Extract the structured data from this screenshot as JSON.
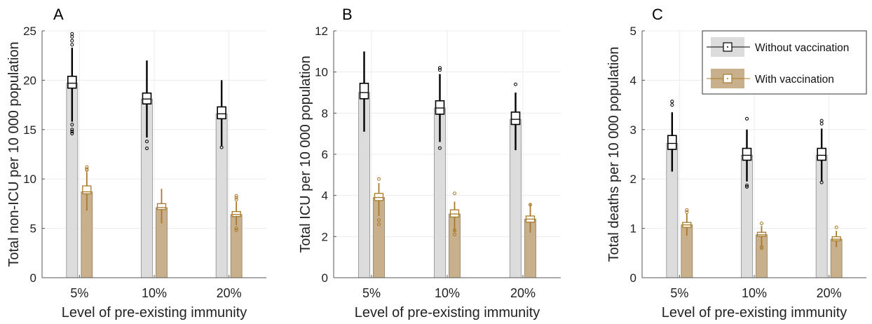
{
  "colors": {
    "without": "#dcdcdc",
    "without_edge": "#8c8c8c",
    "without_box": "#000000",
    "with": "#c8b08c",
    "with_edge": "#8f7d5f",
    "with_box": "#a87a2a",
    "grid": "#ececec",
    "axis": "#555555"
  },
  "chart_data": [
    {
      "type": "bar",
      "panel_label": "A",
      "title": "",
      "xlabel": "Level of pre-existing immunity",
      "ylabel": "Total non-ICU per 10 000 population",
      "categories": [
        "5%",
        "10%",
        "20%"
      ],
      "ylim": [
        0,
        25
      ],
      "yticks": [
        0,
        5,
        10,
        15,
        20,
        25
      ],
      "grid": true,
      "series": [
        {
          "name": "Without vaccination",
          "values": [
            19.7,
            18.1,
            16.6
          ],
          "box_q1": [
            19.2,
            17.6,
            16.1
          ],
          "box_q3": [
            20.4,
            18.7,
            17.3
          ],
          "whisker_low": [
            15.8,
            14.2,
            13.3
          ],
          "whisker_high": [
            23.3,
            22.0,
            20.0
          ],
          "outliers": [
            [
              24.7,
              24.4,
              24.0,
              23.6,
              15.5,
              15.0,
              14.8,
              14.6
            ],
            [
              13.8,
              13.1
            ],
            [
              13.2
            ]
          ]
        },
        {
          "name": "With vaccination",
          "values": [
            8.7,
            7.1,
            6.4
          ],
          "box_q1": [
            8.5,
            6.9,
            6.2
          ],
          "box_q3": [
            9.3,
            7.5,
            6.7
          ],
          "whisker_low": [
            6.8,
            5.5,
            5.3
          ],
          "whisker_high": [
            10.7,
            9.0,
            7.7
          ],
          "outliers": [
            [
              11.2,
              11.0,
              10.9
            ],
            [],
            [
              8.3,
              8.1,
              7.9,
              5.0,
              4.8
            ]
          ]
        }
      ]
    },
    {
      "type": "bar",
      "panel_label": "B",
      "title": "",
      "xlabel": "Level of pre-existing immunity",
      "ylabel": "Total ICU per 10 000 population",
      "categories": [
        "5%",
        "10%",
        "20%"
      ],
      "ylim": [
        0,
        12
      ],
      "yticks": [
        0,
        2,
        4,
        6,
        8,
        10,
        12
      ],
      "grid": true,
      "series": [
        {
          "name": "Without vaccination",
          "values": [
            9.0,
            8.25,
            7.7
          ],
          "box_q1": [
            8.7,
            7.95,
            7.45
          ],
          "box_q3": [
            9.45,
            8.6,
            8.05
          ],
          "whisker_low": [
            7.1,
            6.6,
            6.2
          ],
          "whisker_high": [
            11.0,
            9.9,
            9.0
          ],
          "outliers": [
            [],
            [
              10.2,
              10.1,
              6.3
            ],
            [
              9.4
            ]
          ]
        },
        {
          "name": "With vaccination",
          "values": [
            3.9,
            3.1,
            2.85
          ],
          "box_q1": [
            3.75,
            2.95,
            2.7
          ],
          "box_q3": [
            4.1,
            3.3,
            3.0
          ],
          "whisker_low": [
            3.0,
            2.2,
            2.2
          ],
          "whisker_high": [
            4.6,
            3.7,
            3.6
          ],
          "outliers": [
            [
              4.8,
              2.8,
              2.6
            ],
            [
              4.1,
              2.3,
              2.1
            ],
            [
              3.55
            ]
          ]
        }
      ]
    },
    {
      "type": "bar",
      "panel_label": "C",
      "title": "",
      "xlabel": "Level of pre-existing immunity",
      "ylabel": "Total deaths per 10 000 population",
      "categories": [
        "5%",
        "10%",
        "20%"
      ],
      "ylim": [
        0,
        5
      ],
      "yticks": [
        0,
        1,
        2,
        3,
        4,
        5
      ],
      "grid": true,
      "legend_position": "top-right",
      "series": [
        {
          "name": "Without vaccination",
          "values": [
            2.72,
            2.48,
            2.48
          ],
          "box_q1": [
            2.6,
            2.38,
            2.38
          ],
          "box_q3": [
            2.88,
            2.62,
            2.62
          ],
          "whisker_low": [
            2.15,
            1.95,
            1.95
          ],
          "whisker_high": [
            3.35,
            3.0,
            3.02
          ],
          "outliers": [
            [
              3.57,
              3.5
            ],
            [
              3.22,
              1.87,
              1.84
            ],
            [
              3.18,
              3.12,
              1.93
            ]
          ]
        },
        {
          "name": "With vaccination",
          "values": [
            1.07,
            0.87,
            0.78
          ],
          "box_q1": [
            1.02,
            0.84,
            0.75
          ],
          "box_q3": [
            1.12,
            0.92,
            0.83
          ],
          "whisker_low": [
            0.85,
            0.65,
            0.62
          ],
          "whisker_high": [
            1.3,
            1.05,
            0.95
          ],
          "outliers": [
            [
              1.37,
              1.33
            ],
            [
              1.1,
              0.62,
              0.6
            ],
            [
              1.02
            ]
          ]
        }
      ]
    }
  ]
}
